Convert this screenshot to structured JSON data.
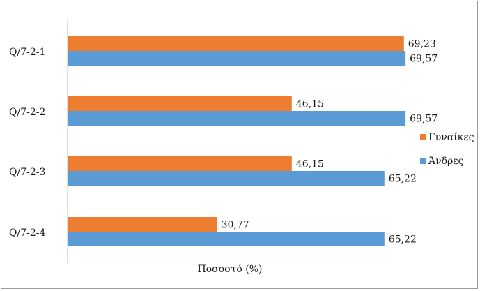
{
  "chart_data": {
    "type": "bar",
    "orientation": "horizontal",
    "categories": [
      "Q/7-2-1",
      "Q/7-2-2",
      "Q/7-2-3",
      "Q/7-2-4"
    ],
    "series": [
      {
        "name": "Γυναίκες",
        "color": "#ED7D31",
        "values": [
          69.23,
          46.15,
          46.15,
          30.77
        ]
      },
      {
        "name": "Άνδρες",
        "color": "#5B9BD5",
        "values": [
          69.57,
          69.57,
          65.22,
          65.22
        ]
      }
    ],
    "data_labels": [
      [
        "69,23",
        "46,15",
        "46,15",
        "30,77"
      ],
      [
        "69,57",
        "69,57",
        "65,22",
        "65,22"
      ]
    ],
    "xlabel": "Ποσοστό (%)",
    "xlim": [
      0,
      75
    ],
    "grid": false,
    "legend_position": "right"
  }
}
